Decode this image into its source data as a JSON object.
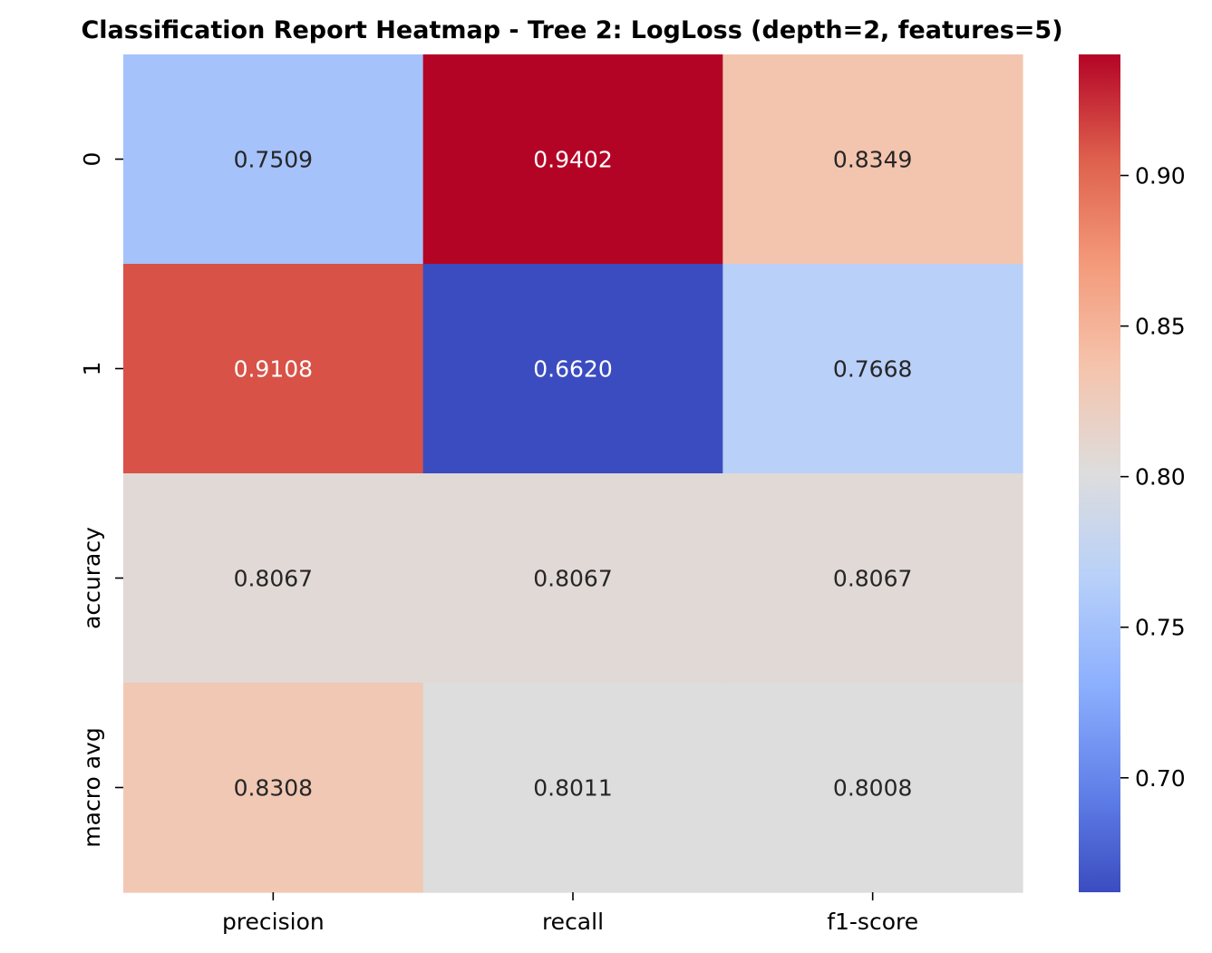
{
  "chart_data": {
    "type": "heatmap",
    "title": "Classification Report Heatmap - Tree 2: LogLoss (depth=2, features=5)",
    "xlabel": "",
    "ylabel": "",
    "x_categories": [
      "precision",
      "recall",
      "f1-score"
    ],
    "y_categories": [
      "0",
      "1",
      "accuracy",
      "macro avg"
    ],
    "values": [
      [
        0.7509,
        0.9402,
        0.8349
      ],
      [
        0.9108,
        0.662,
        0.7668
      ],
      [
        0.8067,
        0.8067,
        0.8067
      ],
      [
        0.8308,
        0.8011,
        0.8008
      ]
    ],
    "value_labels": [
      [
        "0.7509",
        "0.9402",
        "0.8349"
      ],
      [
        "0.9108",
        "0.6620",
        "0.7668"
      ],
      [
        "0.8067",
        "0.8067",
        "0.8067"
      ],
      [
        "0.8308",
        "0.8011",
        "0.8008"
      ]
    ],
    "colormap": "coolwarm",
    "color_range": [
      0.662,
      0.9402
    ],
    "colorbar": {
      "ticks": [
        0.7,
        0.75,
        0.8,
        0.85,
        0.9
      ],
      "tick_labels": [
        "0.70",
        "0.75",
        "0.80",
        "0.85",
        "0.90"
      ]
    },
    "grid": false,
    "legend": "colorbar-right"
  }
}
